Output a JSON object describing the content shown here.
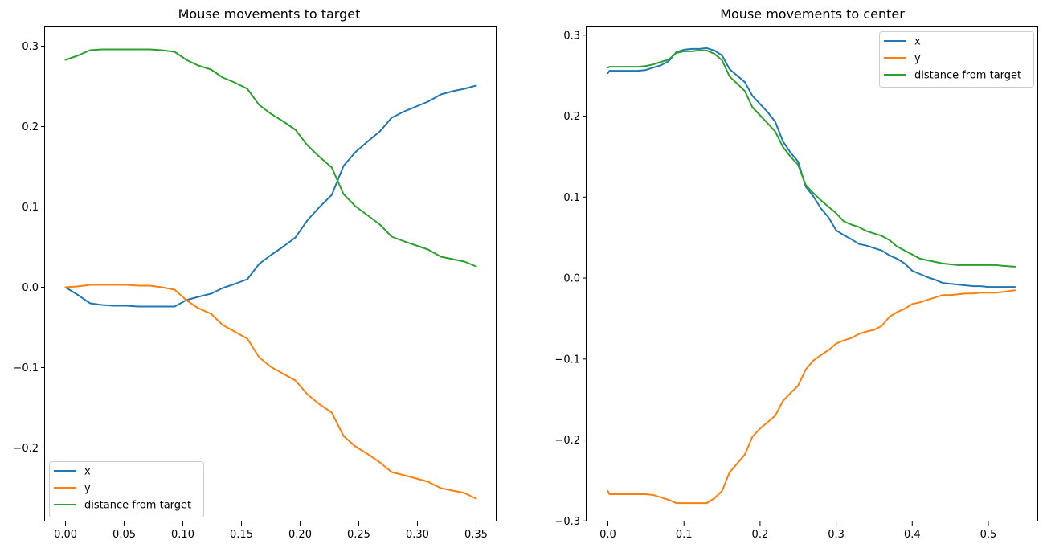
{
  "chart_data": [
    {
      "type": "line",
      "title": "Mouse movements to target",
      "xlabel": "",
      "ylabel": "",
      "xlim": [
        -0.0175,
        0.3675
      ],
      "ylim": [
        -0.2915,
        0.3245
      ],
      "xticks": [
        0.0,
        0.05,
        0.1,
        0.15,
        0.2,
        0.25,
        0.3,
        0.35
      ],
      "xtick_labels": [
        "0.00",
        "0.05",
        "0.10",
        "0.15",
        "0.20",
        "0.25",
        "0.30",
        "0.35"
      ],
      "yticks": [
        -0.2,
        -0.1,
        0.0,
        0.1,
        0.2,
        0.3
      ],
      "ytick_labels": [
        "−0.2",
        "−0.1",
        "0.0",
        "0.1",
        "0.2",
        "0.3"
      ],
      "legend_position": "lower-left",
      "grid": false,
      "series": [
        {
          "name": "x",
          "color": "#1f77b4",
          "x": [
            0.0,
            0.01,
            0.021,
            0.031,
            0.041,
            0.052,
            0.062,
            0.072,
            0.082,
            0.093,
            0.103,
            0.113,
            0.124,
            0.134,
            0.144,
            0.155,
            0.165,
            0.175,
            0.186,
            0.196,
            0.206,
            0.216,
            0.227,
            0.237,
            0.247,
            0.258,
            0.268,
            0.278,
            0.289,
            0.299,
            0.309,
            0.32,
            0.33,
            0.34,
            0.35
          ],
          "y": [
            0.0,
            -0.009,
            -0.02,
            -0.022,
            -0.023,
            -0.023,
            -0.024,
            -0.024,
            -0.024,
            -0.024,
            -0.016,
            -0.012,
            -0.008,
            -0.001,
            0.004,
            0.01,
            0.029,
            0.04,
            0.051,
            0.062,
            0.083,
            0.099,
            0.115,
            0.151,
            0.168,
            0.182,
            0.194,
            0.211,
            0.219,
            0.225,
            0.231,
            0.24,
            0.244,
            0.247,
            0.251
          ]
        },
        {
          "name": "y",
          "color": "#ff7f0e",
          "x": [
            0.0,
            0.01,
            0.021,
            0.031,
            0.041,
            0.052,
            0.062,
            0.072,
            0.082,
            0.093,
            0.103,
            0.113,
            0.124,
            0.134,
            0.144,
            0.155,
            0.165,
            0.175,
            0.186,
            0.196,
            0.206,
            0.216,
            0.227,
            0.237,
            0.247,
            0.258,
            0.268,
            0.278,
            0.289,
            0.299,
            0.309,
            0.32,
            0.33,
            0.34,
            0.35
          ],
          "y": [
            0.0,
            0.001,
            0.003,
            0.003,
            0.003,
            0.003,
            0.002,
            0.002,
            0.0,
            -0.003,
            -0.016,
            -0.026,
            -0.033,
            -0.047,
            -0.055,
            -0.064,
            -0.087,
            -0.099,
            -0.108,
            -0.116,
            -0.133,
            -0.145,
            -0.156,
            -0.185,
            -0.198,
            -0.208,
            -0.218,
            -0.23,
            -0.234,
            -0.238,
            -0.242,
            -0.25,
            -0.253,
            -0.256,
            -0.263
          ]
        },
        {
          "name": "distance from target",
          "color": "#2ca02c",
          "x": [
            0.0,
            0.01,
            0.021,
            0.031,
            0.041,
            0.052,
            0.062,
            0.072,
            0.082,
            0.093,
            0.103,
            0.113,
            0.124,
            0.134,
            0.144,
            0.155,
            0.165,
            0.175,
            0.186,
            0.196,
            0.206,
            0.216,
            0.227,
            0.237,
            0.247,
            0.258,
            0.268,
            0.278,
            0.289,
            0.299,
            0.309,
            0.32,
            0.33,
            0.34,
            0.35
          ],
          "y": [
            0.283,
            0.288,
            0.295,
            0.296,
            0.296,
            0.296,
            0.296,
            0.296,
            0.295,
            0.293,
            0.283,
            0.276,
            0.271,
            0.261,
            0.255,
            0.247,
            0.227,
            0.216,
            0.206,
            0.196,
            0.177,
            0.163,
            0.149,
            0.116,
            0.101,
            0.089,
            0.078,
            0.063,
            0.057,
            0.052,
            0.047,
            0.038,
            0.035,
            0.032,
            0.026
          ]
        }
      ]
    },
    {
      "type": "line",
      "title": "Mouse movements to center",
      "xlabel": "",
      "ylabel": "",
      "xlim": [
        -0.028,
        0.5655
      ],
      "ylim": [
        -0.3007,
        0.3107
      ],
      "xticks": [
        0.0,
        0.1,
        0.2,
        0.3,
        0.4,
        0.5
      ],
      "xtick_labels": [
        "0.0",
        "0.1",
        "0.2",
        "0.3",
        "0.4",
        "0.5"
      ],
      "yticks": [
        -0.3,
        -0.2,
        -0.1,
        0.0,
        0.1,
        0.2,
        0.3
      ],
      "ytick_labels": [
        "−0.3",
        "−0.2",
        "−0.1",
        "0.0",
        "0.1",
        "0.2",
        "0.3"
      ],
      "legend_position": "upper-right",
      "grid": false,
      "series": [
        {
          "name": "x",
          "color": "#1f77b4",
          "x": [
            0.0,
            0.002,
            0.02,
            0.04,
            0.05,
            0.06,
            0.07,
            0.08,
            0.09,
            0.1,
            0.11,
            0.12,
            0.13,
            0.14,
            0.15,
            0.16,
            0.17,
            0.18,
            0.19,
            0.2,
            0.21,
            0.22,
            0.23,
            0.24,
            0.25,
            0.26,
            0.27,
            0.28,
            0.29,
            0.3,
            0.31,
            0.32,
            0.33,
            0.34,
            0.35,
            0.36,
            0.37,
            0.38,
            0.39,
            0.4,
            0.41,
            0.42,
            0.43,
            0.44,
            0.45,
            0.46,
            0.47,
            0.48,
            0.49,
            0.5,
            0.51,
            0.52,
            0.535
          ],
          "y": [
            0.253,
            0.256,
            0.256,
            0.256,
            0.257,
            0.26,
            0.263,
            0.268,
            0.279,
            0.282,
            0.283,
            0.283,
            0.284,
            0.281,
            0.275,
            0.258,
            0.25,
            0.242,
            0.225,
            0.215,
            0.205,
            0.193,
            0.169,
            0.155,
            0.144,
            0.113,
            0.101,
            0.086,
            0.075,
            0.059,
            0.053,
            0.048,
            0.042,
            0.04,
            0.037,
            0.034,
            0.028,
            0.024,
            0.018,
            0.009,
            0.005,
            0.001,
            -0.002,
            -0.006,
            -0.007,
            -0.008,
            -0.009,
            -0.01,
            -0.01,
            -0.011,
            -0.011,
            -0.011,
            -0.011
          ]
        },
        {
          "name": "y",
          "color": "#ff7f0e",
          "x": [
            0.0,
            0.002,
            0.02,
            0.04,
            0.05,
            0.06,
            0.07,
            0.08,
            0.09,
            0.1,
            0.11,
            0.12,
            0.13,
            0.14,
            0.15,
            0.16,
            0.17,
            0.18,
            0.19,
            0.2,
            0.21,
            0.22,
            0.23,
            0.24,
            0.25,
            0.26,
            0.27,
            0.28,
            0.29,
            0.3,
            0.31,
            0.32,
            0.33,
            0.34,
            0.35,
            0.36,
            0.37,
            0.38,
            0.39,
            0.4,
            0.41,
            0.42,
            0.43,
            0.44,
            0.45,
            0.46,
            0.47,
            0.48,
            0.49,
            0.5,
            0.51,
            0.52,
            0.535
          ],
          "y": [
            -0.263,
            -0.267,
            -0.267,
            -0.267,
            -0.267,
            -0.268,
            -0.271,
            -0.274,
            -0.278,
            -0.278,
            -0.278,
            -0.278,
            -0.278,
            -0.272,
            -0.263,
            -0.24,
            -0.229,
            -0.218,
            -0.196,
            -0.186,
            -0.178,
            -0.17,
            -0.152,
            -0.142,
            -0.133,
            -0.113,
            -0.102,
            -0.095,
            -0.089,
            -0.081,
            -0.077,
            -0.074,
            -0.069,
            -0.066,
            -0.064,
            -0.059,
            -0.048,
            -0.042,
            -0.038,
            -0.032,
            -0.03,
            -0.027,
            -0.024,
            -0.021,
            -0.021,
            -0.02,
            -0.019,
            -0.019,
            -0.018,
            -0.018,
            -0.018,
            -0.017,
            -0.015
          ]
        },
        {
          "name": "distance from target",
          "color": "#2ca02c",
          "x": [
            0.0,
            0.002,
            0.02,
            0.04,
            0.05,
            0.06,
            0.07,
            0.08,
            0.09,
            0.1,
            0.11,
            0.12,
            0.13,
            0.14,
            0.15,
            0.16,
            0.17,
            0.18,
            0.19,
            0.2,
            0.21,
            0.22,
            0.23,
            0.24,
            0.25,
            0.26,
            0.27,
            0.28,
            0.29,
            0.3,
            0.31,
            0.32,
            0.33,
            0.34,
            0.35,
            0.36,
            0.37,
            0.38,
            0.39,
            0.4,
            0.41,
            0.42,
            0.43,
            0.44,
            0.45,
            0.46,
            0.47,
            0.48,
            0.49,
            0.5,
            0.51,
            0.52,
            0.535
          ],
          "y": [
            0.26,
            0.261,
            0.261,
            0.261,
            0.262,
            0.264,
            0.267,
            0.27,
            0.278,
            0.28,
            0.28,
            0.281,
            0.281,
            0.277,
            0.269,
            0.249,
            0.24,
            0.231,
            0.211,
            0.201,
            0.191,
            0.181,
            0.162,
            0.15,
            0.14,
            0.115,
            0.105,
            0.096,
            0.088,
            0.08,
            0.07,
            0.066,
            0.063,
            0.058,
            0.055,
            0.052,
            0.047,
            0.039,
            0.034,
            0.029,
            0.024,
            0.022,
            0.02,
            0.018,
            0.017,
            0.016,
            0.016,
            0.016,
            0.016,
            0.016,
            0.016,
            0.015,
            0.014
          ]
        }
      ]
    }
  ]
}
